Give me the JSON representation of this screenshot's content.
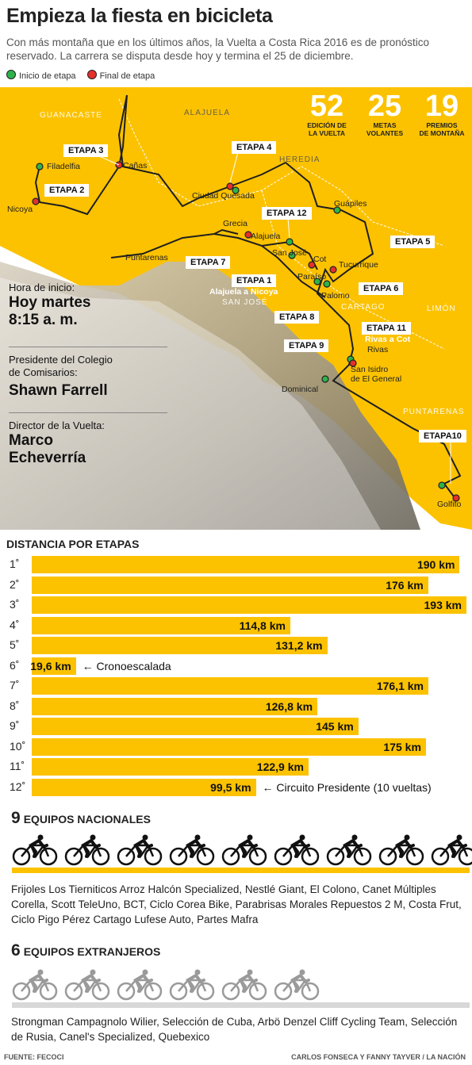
{
  "header": {
    "title": "Empieza la fiesta en bicicleta",
    "subtitle": "Con más montaña que en los últimos años, la Vuelta a Costa Rica 2016 es de pronóstico reservado. La carrera se disputa desde hoy y termina el 25 de diciembre.",
    "legend_start": "Inicio de etapa",
    "legend_end": "Final de etapa",
    "start_color": "#2db34a",
    "end_color": "#e5302c"
  },
  "stats": [
    {
      "num": "52",
      "label1": "EDICIÓN DE",
      "label2": "LA VUELTA"
    },
    {
      "num": "25",
      "label1": "METAS",
      "label2": "VOLANTES"
    },
    {
      "num": "19",
      "label1": "PREMIOS",
      "label2": "DE MONTAÑA"
    }
  ],
  "info": {
    "hora_label": "Hora de inicio:",
    "hora_val1": "Hoy martes",
    "hora_val2": "8:15 a. m.",
    "pres_label1": "Presidente del Colegio",
    "pres_label2": "de Comisarios:",
    "pres_val": "Shawn Farrell",
    "dir_label": "Director de la Vuelta:",
    "dir_val1": "Marco",
    "dir_val2": "Echeverría"
  },
  "map": {
    "provinces": [
      "GUANACASTE",
      "ALAJUELA",
      "HEREDIA",
      "SAN JOSÉ",
      "CARTAGO",
      "LIMÓN",
      "PUNTARENAS"
    ],
    "places": [
      "Filadelfia",
      "Cañas",
      "Nicoya",
      "Ciudad Quesada",
      "Guápiles",
      "Grecia",
      "Alajuela",
      "Puntarenas",
      "San José",
      "Cot",
      "Tucurrique",
      "Paraíso",
      "Palomo",
      "Rivas",
      "San Isidro",
      "de El General",
      "Dominical",
      "Golfito"
    ],
    "stages": [
      "ETAPA 1",
      "ETAPA 2",
      "ETAPA 3",
      "ETAPA 4",
      "ETAPA 5",
      "ETAPA 6",
      "ETAPA 7",
      "ETAPA 8",
      "ETAPA 9",
      "ETAPA10",
      "ETAPA 11",
      "ETAPA 12"
    ],
    "stage1_sub": "Alajuela a Nicoya",
    "stage11_sub": "Rivas a Cot"
  },
  "chart_data": {
    "type": "bar",
    "title": "DISTANCIA POR ETAPAS",
    "categories": [
      "1˚",
      "2˚",
      "3˚",
      "4˚",
      "5˚",
      "6˚",
      "7˚",
      "8˚",
      "9˚",
      "10˚",
      "11˚",
      "12˚"
    ],
    "values": [
      190,
      176,
      193,
      114.8,
      131.2,
      19.6,
      176.1,
      126.8,
      145,
      175,
      122.9,
      99.5
    ],
    "value_labels": [
      "190 km",
      "176 km",
      "193 km",
      "114,8 km",
      "131,2 km",
      "19,6 km",
      "176,1 km",
      "126,8 km",
      "145 km",
      "175 km",
      "122,9 km",
      "99,5 km"
    ],
    "annotations": [
      {
        "category": "6˚",
        "text": "Cronoescalada"
      },
      {
        "category": "12˚",
        "text": "Circuito Presidente  (10 vueltas)"
      }
    ],
    "orientation": "horizontal",
    "bar_color": "#fcc200",
    "xlim": [
      0,
      193
    ]
  },
  "teams": {
    "national_count": "9",
    "national_title": "EQUIPOS NACIONALES",
    "national_list": "Frijoles Los Tierniticos Arroz Halcón Specialized, Nestlé Giant, El Colono, Canet Múltiples Corella, Scott TeleUno, BCT, Ciclo Corea Bike, Parabrisas Morales Repuestos 2 M, Costa Frut, Ciclo Pigo Pérez Cartago Lufese Auto, Partes Mafra",
    "foreign_count": "6",
    "foreign_title": "EQUIPOS EXTRANJEROS",
    "foreign_list": "Strongman Campagnolo Wilier, Selección de Cuba, Arbö Denzel Cliff Cycling Team, Selección de Rusia, Canel's Specialized, Quebexico"
  },
  "footer": {
    "source": "FUENTE: FECOCI",
    "credit": "CARLOS FONSECA Y FANNY TAYVER / LA NACIÓN"
  }
}
